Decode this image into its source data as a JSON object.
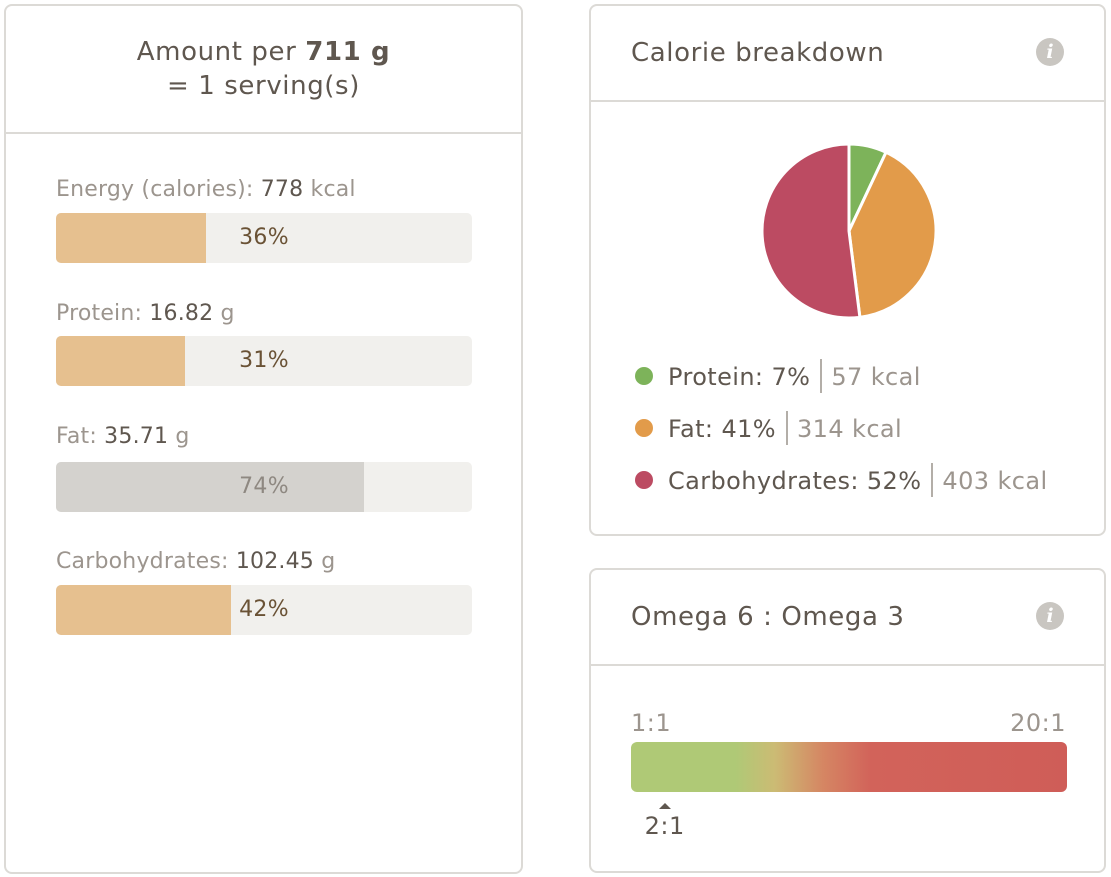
{
  "amount": {
    "prefix": "Amount per",
    "weight": "711 g",
    "servings": "= 1 serving(s)"
  },
  "nutrients": [
    {
      "label": "Energy (calories):",
      "value": "778",
      "unit": "kcal",
      "percent_text": "36%",
      "percent": 36,
      "style": "tan"
    },
    {
      "label": "Protein:",
      "value": "16.82",
      "unit": "g",
      "percent_text": "31%",
      "percent": 31,
      "style": "tan"
    },
    {
      "label": "Fat:",
      "value": "35.71",
      "unit": "g",
      "percent_text": "74%",
      "percent": 74,
      "style": "grey"
    },
    {
      "label": "Carbohydrates:",
      "value": "102.45",
      "unit": "g",
      "percent_text": "42%",
      "percent": 42,
      "style": "tan"
    }
  ],
  "calorie_breakdown": {
    "title": "Calorie breakdown",
    "info_icon": "info-icon",
    "items": [
      {
        "name": "Protein:",
        "percent_text": "7%",
        "kcal": "57 kcal",
        "percent": 7,
        "color": "#7db35a"
      },
      {
        "name": "Fat:",
        "percent_text": "41%",
        "kcal": "314 kcal",
        "percent": 41,
        "color": "#e29b4a"
      },
      {
        "name": "Carbohydrates:",
        "percent_text": "52%",
        "kcal": "403 kcal",
        "percent": 52,
        "color": "#bc4b62"
      }
    ]
  },
  "omega": {
    "title": "Omega 6 : Omega 3",
    "info_icon": "info-icon",
    "min_label": "1:1",
    "max_label": "20:1",
    "value_label": "2:1",
    "value": 2
  }
}
